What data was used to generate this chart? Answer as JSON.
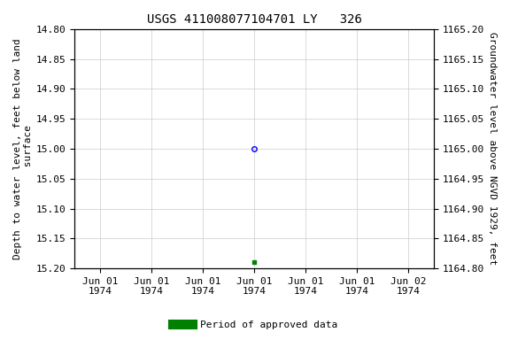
{
  "title": "USGS 411008077104701 LY   326",
  "ylabel_left": "Depth to water level, feet below land\n surface",
  "ylabel_right": "Groundwater level above NGVD 1929, feet",
  "ylim_left": [
    15.2,
    14.8
  ],
  "ylim_right": [
    1164.8,
    1165.2
  ],
  "yticks_left": [
    14.8,
    14.85,
    14.9,
    14.95,
    15.0,
    15.05,
    15.1,
    15.15,
    15.2
  ],
  "yticks_right": [
    1164.8,
    1164.85,
    1164.9,
    1164.95,
    1165.0,
    1165.05,
    1165.1,
    1165.15,
    1165.2
  ],
  "data_point_x": 3,
  "data_point_y": 15.0,
  "data_point_color": "#0000ff",
  "data_point_marker": "o",
  "data_point_markersize": 4,
  "approved_point_x": 3,
  "approved_point_y": 15.19,
  "approved_point_color": "#008000",
  "approved_point_marker": "s",
  "approved_point_markersize": 3,
  "xtick_positions": [
    0,
    1,
    2,
    3,
    4,
    5,
    6
  ],
  "xtick_labels": [
    "Jun 01\n1974",
    "Jun 01\n1974",
    "Jun 01\n1974",
    "Jun 01\n1974",
    "Jun 01\n1974",
    "Jun 01\n1974",
    "Jun 02\n1974"
  ],
  "xlim": [
    -0.5,
    6.5
  ],
  "grid_color": "#cccccc",
  "background_color": "#ffffff",
  "legend_label": "Period of approved data",
  "legend_color": "#008000",
  "title_fontsize": 10,
  "label_fontsize": 8,
  "tick_fontsize": 8,
  "font_family": "monospace"
}
